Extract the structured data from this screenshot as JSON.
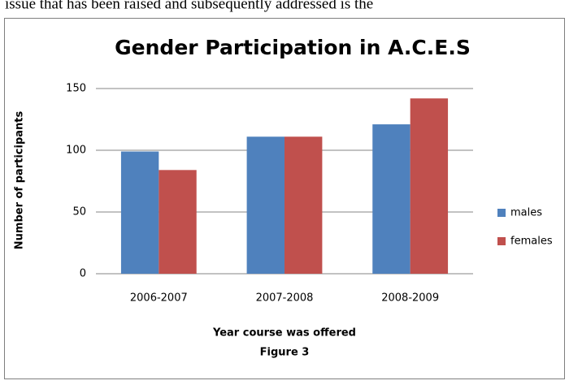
{
  "context_text": "issue that has been raised and subsequently addressed is the",
  "chart_data": {
    "type": "bar",
    "title": "Gender Participation in A.C.E.S",
    "y_label": "Number of participants",
    "x_label": "Year course was offered",
    "caption": "Figure 3",
    "categories": [
      "2006-2007",
      "2007-2008",
      "2008-2009"
    ],
    "series": [
      {
        "name": "males",
        "color": "#4f81bd",
        "values": [
          99,
          111,
          121
        ]
      },
      {
        "name": "females",
        "color": "#c0504d",
        "values": [
          84,
          111,
          142
        ]
      }
    ],
    "ylim": [
      0,
      150
    ],
    "yticks": [
      0,
      50,
      100,
      150
    ],
    "grid": true,
    "legend": "right"
  }
}
